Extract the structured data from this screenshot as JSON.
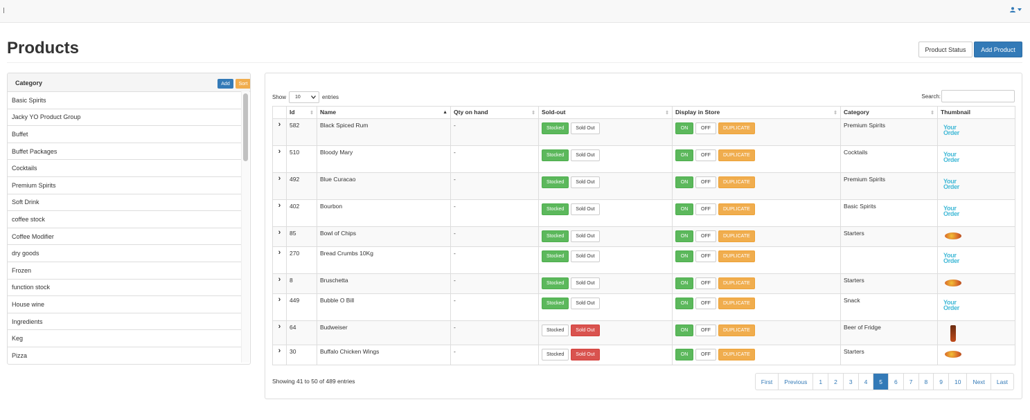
{
  "header": {
    "user_icon": "user-icon",
    "caret_icon": "caret-down-icon"
  },
  "page": {
    "title": "Products",
    "product_status_label": "Product Status",
    "add_product_label": "Add Product"
  },
  "category_panel": {
    "title": "Category",
    "add_label": "Add",
    "sort_label": "Sort",
    "items": [
      "Basic Spirits",
      "Jacky YO Product Group",
      "Buffet",
      "Buffet Packages",
      "Cocktails",
      "Premium Spirits",
      "Soft Drink",
      "coffee stock",
      "Coffee Modifier",
      "dry goods",
      "Frozen",
      "function stock",
      "House wine",
      "Ingredients",
      "Keg",
      "Pizza"
    ]
  },
  "table_controls": {
    "show_label": "Show",
    "length_value": "10",
    "entries_label": "entries",
    "search_label": "Search:",
    "search_value": ""
  },
  "table": {
    "headers": [
      "",
      "Id",
      "Name",
      "Qty on hand",
      "Sold-out",
      "Display in Store",
      "Category",
      "Thumbnail"
    ],
    "stocked_label": "Stocked",
    "soldout_label": "Sold Out",
    "on_label": "ON",
    "off_label": "OFF",
    "duplicate_label": "DUPLICATE",
    "logo_line1": "Your",
    "logo_line2": "Order",
    "rows": [
      {
        "id": "582",
        "name": "Black Spiced Rum",
        "qty": "-",
        "status": "stocked",
        "category": "Premium Spirits",
        "thumb": "logo"
      },
      {
        "id": "510",
        "name": "Bloody Mary",
        "qty": "-",
        "status": "stocked",
        "category": "Cocktails",
        "thumb": "logo"
      },
      {
        "id": "492",
        "name": "Blue Curacao",
        "qty": "-",
        "status": "stocked",
        "category": "Premium Spirits",
        "thumb": "logo"
      },
      {
        "id": "402",
        "name": "Bourbon",
        "qty": "-",
        "status": "stocked",
        "category": "Basic Spirits",
        "thumb": "logo"
      },
      {
        "id": "85",
        "name": "Bowl of Chips",
        "qty": "-",
        "status": "stocked",
        "category": "Starters",
        "thumb": "food"
      },
      {
        "id": "270",
        "name": "Bread Crumbs 10Kg",
        "qty": "-",
        "status": "stocked",
        "category": "",
        "thumb": "logo"
      },
      {
        "id": "8",
        "name": "Bruschetta",
        "qty": "-",
        "status": "stocked",
        "category": "Starters",
        "thumb": "food"
      },
      {
        "id": "449",
        "name": "Bubble O Bill",
        "qty": "-",
        "status": "stocked",
        "category": "Snack",
        "thumb": "logo"
      },
      {
        "id": "64",
        "name": "Budweiser",
        "qty": "-",
        "status": "soldout",
        "category": "Beer of Fridge",
        "thumb": "bottle"
      },
      {
        "id": "30",
        "name": "Buffalo Chicken Wings",
        "qty": "-",
        "status": "soldout",
        "category": "Starters",
        "thumb": "food"
      }
    ]
  },
  "footer": {
    "info": "Showing 41 to 50 of 489 entries",
    "pages": [
      "First",
      "Previous",
      "1",
      "2",
      "3",
      "4",
      "5",
      "6",
      "7",
      "8",
      "9",
      "10",
      "Next",
      "Last"
    ],
    "active_page": "5"
  },
  "colors": {
    "primary": "#337ab7",
    "success": "#5cb85c",
    "danger": "#d9534f",
    "warning": "#f0ad4e"
  }
}
